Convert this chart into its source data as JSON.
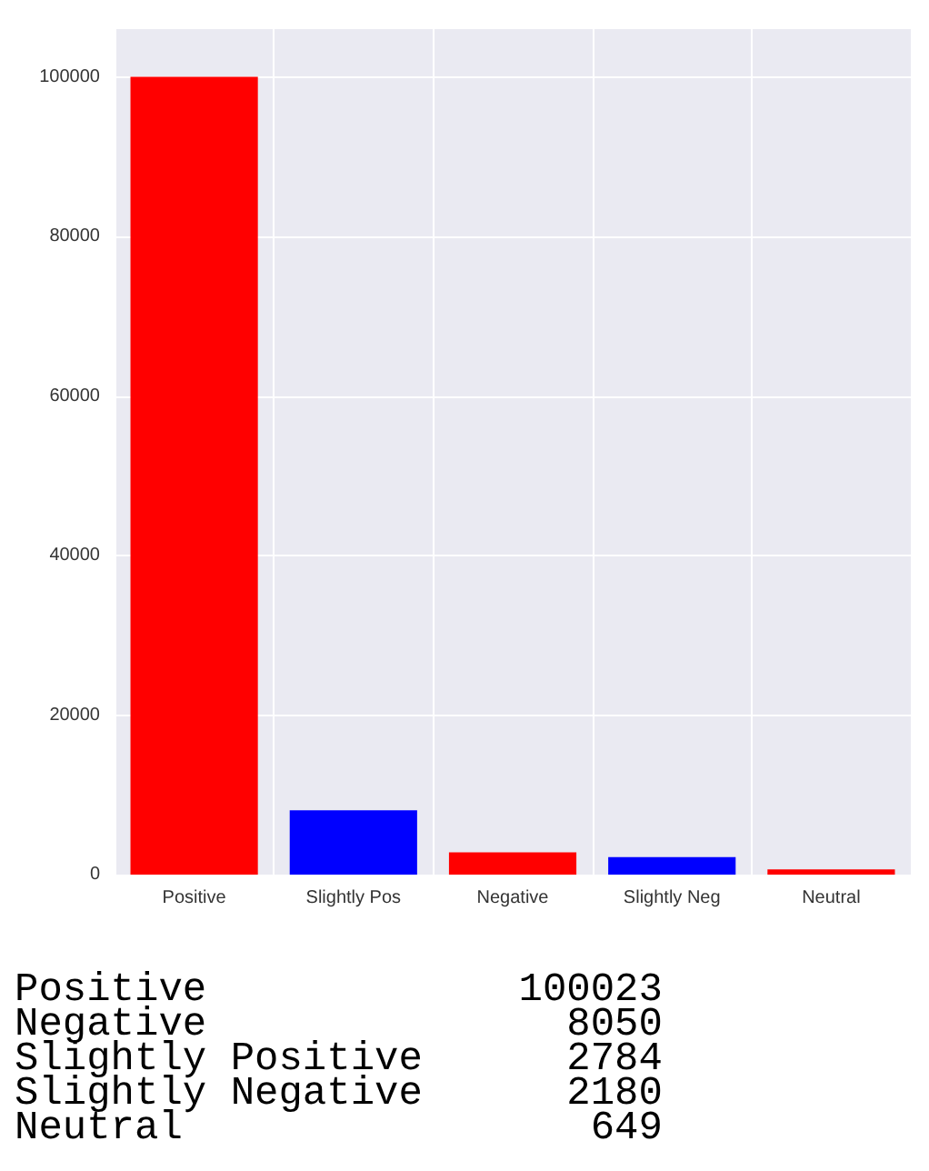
{
  "chart_data": {
    "type": "bar",
    "categories": [
      "Positive",
      "Slightly Pos",
      "Negative",
      "Slightly Neg",
      "Neutral"
    ],
    "values": [
      100023,
      8050,
      2784,
      2180,
      649
    ],
    "colors": [
      "#ff0000",
      "#0000ff",
      "#ff0000",
      "#0000ff",
      "#ff0000"
    ],
    "ylim": [
      0,
      106000
    ],
    "yticks": [
      0,
      20000,
      40000,
      60000,
      80000,
      100000
    ],
    "grid": true,
    "annotations": [
      "Positive             100023",
      "Negative               8050",
      "Slightly Positive      2784",
      "Slightly Negative      2180",
      "Neutral                 649"
    ]
  }
}
